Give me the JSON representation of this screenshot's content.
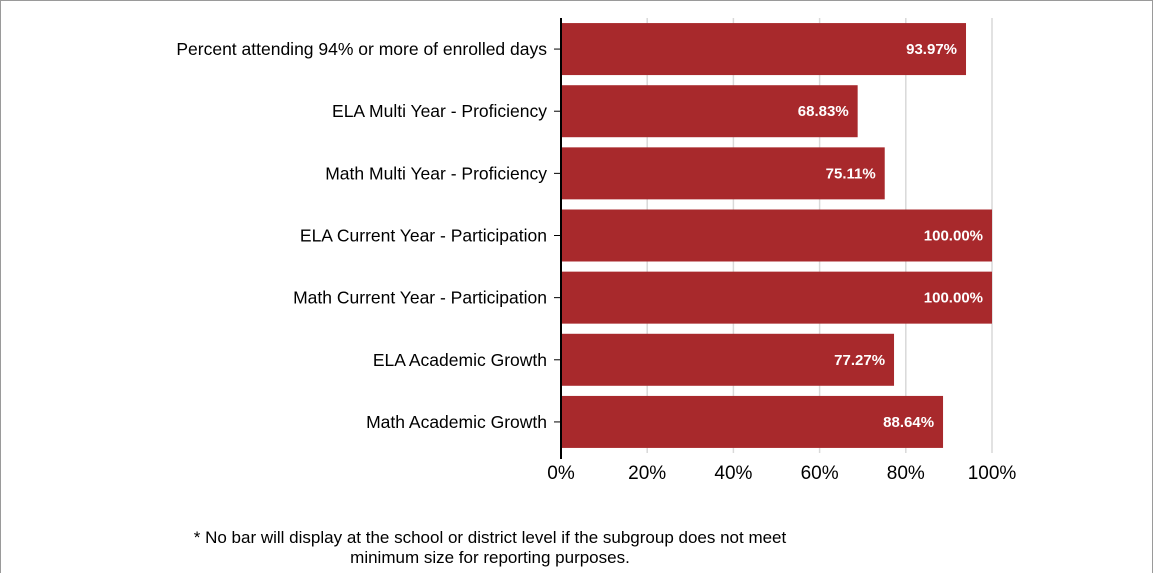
{
  "chart_data": {
    "type": "bar",
    "orientation": "horizontal",
    "categories": [
      "Percent attending 94% or more of enrolled days",
      "ELA Multi Year - Proficiency",
      "Math Multi Year - Proficiency",
      "ELA Current Year - Participation",
      "Math Current Year - Participation",
      "ELA Academic Growth",
      "Math Academic Growth"
    ],
    "values": [
      93.97,
      68.83,
      75.11,
      100.0,
      100.0,
      77.27,
      88.64
    ],
    "value_labels": [
      "93.97%",
      "68.83%",
      "75.11%",
      "100.00%",
      "100.00%",
      "77.27%",
      "88.64%"
    ],
    "xlim": [
      0,
      100
    ],
    "xticks": [
      0,
      20,
      40,
      60,
      80,
      100
    ],
    "xtick_labels": [
      "0%",
      "20%",
      "40%",
      "60%",
      "80%",
      "100%"
    ],
    "grid": "vertical",
    "bar_color": "#a8292c",
    "title": "",
    "xlabel": "",
    "ylabel": ""
  },
  "footnote": {
    "line1": "* No bar will display at the school or district level if the subgroup does not meet",
    "line2": "minimum size for reporting purposes."
  }
}
